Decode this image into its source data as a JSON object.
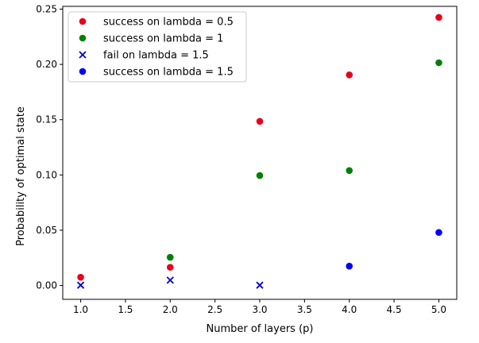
{
  "chart_data": {
    "type": "scatter",
    "title": "",
    "xlabel": "Number of layers (p)",
    "ylabel": "Probability of optimal state",
    "xlim": [
      0.8,
      5.2
    ],
    "ylim": [
      -0.0125,
      0.2525
    ],
    "x_ticks": [
      1.0,
      1.5,
      2.0,
      2.5,
      3.0,
      3.5,
      4.0,
      4.5,
      5.0
    ],
    "x_tick_labels": [
      "1.0",
      "1.5",
      "2.0",
      "2.5",
      "3.0",
      "3.5",
      "4.0",
      "4.5",
      "5.0"
    ],
    "y_ticks": [
      0.0,
      0.05,
      0.1,
      0.15,
      0.2,
      0.25
    ],
    "y_tick_labels": [
      "0.00",
      "0.05",
      "0.10",
      "0.15",
      "0.20",
      "0.25"
    ],
    "legend_position": "top-left",
    "series": [
      {
        "name": "success on lambda = 0.5",
        "marker": "circle",
        "color": "#e8001c",
        "x": [
          1,
          2,
          3,
          4,
          5
        ],
        "y": [
          0.0075,
          0.0165,
          0.1485,
          0.1905,
          0.2425
        ]
      },
      {
        "name": "success on lambda = 1",
        "marker": "circle",
        "color": "#008000",
        "x": [
          2,
          3,
          4,
          5
        ],
        "y": [
          0.0255,
          0.0995,
          0.104,
          0.2015
        ]
      },
      {
        "name": "fail on lambda = 1.5",
        "marker": "x",
        "color": "#0000cc",
        "x": [
          1,
          2,
          3
        ],
        "y": [
          0.0003,
          0.0048,
          0.0003
        ]
      },
      {
        "name": "success on lambda = 1.5",
        "marker": "circle",
        "color": "#0000ff",
        "x": [
          4,
          5
        ],
        "y": [
          0.0175,
          0.048
        ]
      }
    ]
  }
}
